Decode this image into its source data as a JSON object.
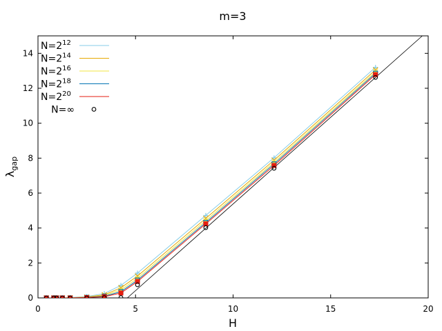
{
  "chart_data": {
    "type": "line",
    "title": "m=3",
    "xlabel": "H",
    "ylabel_main": "λ",
    "ylabel_sub": "gap",
    "xlim": [
      0,
      20
    ],
    "ylim": [
      0,
      15
    ],
    "xticks": [
      0,
      5,
      10,
      15,
      20
    ],
    "yticks": [
      0,
      2,
      4,
      6,
      8,
      10,
      12,
      14
    ],
    "grid": false,
    "legend_position": "top-left",
    "x": [
      0.43,
      0.81,
      0.95,
      1.25,
      1.65,
      2.5,
      3.4,
      4.25,
      5.1,
      8.6,
      12.1,
      17.3
    ],
    "series": [
      {
        "name": "N=2^12",
        "label_base": "N=2",
        "label_exp": "12",
        "color": "#87cde8",
        "marker": "plus",
        "values": [
          0.0,
          0.0,
          0.0,
          0.0,
          0.02,
          0.08,
          0.25,
          0.72,
          1.42,
          4.72,
          8.02,
          13.2
        ]
      },
      {
        "name": "N=2^14",
        "label_base": "N=2",
        "label_exp": "14",
        "color": "#e6a800",
        "marker": "cross",
        "values": [
          0.0,
          0.0,
          0.0,
          0.0,
          0.01,
          0.05,
          0.18,
          0.58,
          1.25,
          4.55,
          7.88,
          13.05
        ]
      },
      {
        "name": "N=2^16",
        "label_base": "N=2",
        "label_exp": "16",
        "color": "#f0e442",
        "marker": "star",
        "values": [
          0.0,
          0.0,
          0.0,
          0.0,
          0.01,
          0.04,
          0.14,
          0.46,
          1.12,
          4.42,
          7.76,
          12.94
        ]
      },
      {
        "name": "N=2^18",
        "label_base": "N=2",
        "label_exp": "18",
        "color": "#0072b2",
        "marker": "square",
        "values": [
          0.0,
          0.0,
          0.0,
          0.0,
          0.0,
          0.03,
          0.1,
          0.36,
          1.02,
          4.32,
          7.67,
          12.86
        ]
      },
      {
        "name": "N=2^20",
        "label_base": "N=2",
        "label_exp": "20",
        "color": "#e51e10",
        "marker": "filled-square",
        "values": [
          0.0,
          0.0,
          0.0,
          0.0,
          0.0,
          0.02,
          0.07,
          0.28,
          0.94,
          4.24,
          7.58,
          12.78
        ]
      },
      {
        "name": "N=∞",
        "label_base": "N=∞",
        "label_exp": "",
        "color": "#000000",
        "marker": "circle",
        "values": [
          0.0,
          0.0,
          0.0,
          0.0,
          0.0,
          0.0,
          0.02,
          0.02,
          0.75,
          4.02,
          7.42,
          12.62
        ]
      }
    ],
    "reference_line": {
      "color": "#000000",
      "x": [
        4.58,
        19.7
      ],
      "y": [
        0.0,
        15.0
      ]
    }
  }
}
